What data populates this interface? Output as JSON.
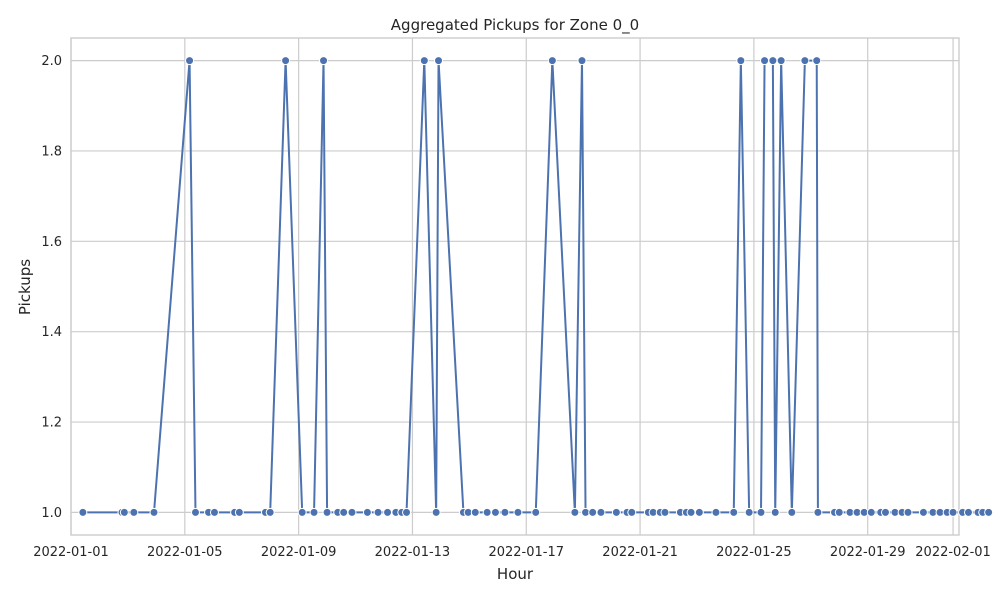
{
  "chart_data": {
    "type": "line",
    "title": "Aggregated Pickups for Zone 0_0",
    "xlabel": "Hour",
    "ylabel": "Pickups",
    "x_tick_labels": [
      "2022-01-01",
      "2022-01-05",
      "2022-01-09",
      "2022-01-13",
      "2022-01-17",
      "2022-01-21",
      "2022-01-25",
      "2022-01-29",
      "2022-02-01"
    ],
    "y_tick_labels": [
      "1.0",
      "1.2",
      "1.4",
      "1.6",
      "1.8",
      "2.0"
    ],
    "xlim": [
      "2022-01-01T00:00",
      "2022-02-01T05:00"
    ],
    "ylim": [
      0.95,
      2.05
    ],
    "grid": true,
    "colors": {
      "series": "#4c72b0",
      "grid": "#cccccc",
      "text": "#262626"
    },
    "series": [
      {
        "points": [
          [
            "2022-01-01T10:00",
            1
          ],
          [
            "2022-01-02T19:00",
            1
          ],
          [
            "2022-01-02T21:00",
            1
          ],
          [
            "2022-01-03T05:00",
            1
          ],
          [
            "2022-01-03T22:00",
            1
          ],
          [
            "2022-01-05T04:00",
            2
          ],
          [
            "2022-01-05T09:00",
            1
          ],
          [
            "2022-01-05T20:00",
            1
          ],
          [
            "2022-01-06T01:00",
            1
          ],
          [
            "2022-01-06T18:00",
            1
          ],
          [
            "2022-01-06T22:00",
            1
          ],
          [
            "2022-01-07T20:00",
            1
          ],
          [
            "2022-01-08T00:00",
            1
          ],
          [
            "2022-01-08T13:00",
            2
          ],
          [
            "2022-01-09T03:00",
            1
          ],
          [
            "2022-01-09T13:00",
            1
          ],
          [
            "2022-01-09T21:00",
            2
          ],
          [
            "2022-01-10T00:00",
            1
          ],
          [
            "2022-01-10T09:00",
            1
          ],
          [
            "2022-01-10T14:00",
            1
          ],
          [
            "2022-01-10T21:00",
            1
          ],
          [
            "2022-01-11T10:00",
            1
          ],
          [
            "2022-01-11T19:00",
            1
          ],
          [
            "2022-01-12T03:00",
            1
          ],
          [
            "2022-01-12T10:00",
            1
          ],
          [
            "2022-01-12T15:00",
            1
          ],
          [
            "2022-01-12T19:00",
            1
          ],
          [
            "2022-01-13T10:00",
            2
          ],
          [
            "2022-01-13T20:00",
            1
          ],
          [
            "2022-01-13T22:00",
            2
          ],
          [
            "2022-01-14T19:00",
            1
          ],
          [
            "2022-01-14T23:00",
            1
          ],
          [
            "2022-01-15T05:00",
            1
          ],
          [
            "2022-01-15T15:00",
            1
          ],
          [
            "2022-01-15T22:00",
            1
          ],
          [
            "2022-01-16T06:00",
            1
          ],
          [
            "2022-01-16T17:00",
            1
          ],
          [
            "2022-01-17T08:00",
            1
          ],
          [
            "2022-01-17T22:00",
            2
          ],
          [
            "2022-01-18T17:00",
            1
          ],
          [
            "2022-01-18T23:00",
            2
          ],
          [
            "2022-01-19T02:00",
            1
          ],
          [
            "2022-01-19T08:00",
            1
          ],
          [
            "2022-01-19T15:00",
            1
          ],
          [
            "2022-01-20T04:00",
            1
          ],
          [
            "2022-01-20T13:00",
            1
          ],
          [
            "2022-01-20T17:00",
            1
          ],
          [
            "2022-01-21T07:00",
            1
          ],
          [
            "2022-01-21T11:00",
            1
          ],
          [
            "2022-01-21T17:00",
            1
          ],
          [
            "2022-01-21T21:00",
            1
          ],
          [
            "2022-01-22T10:00",
            1
          ],
          [
            "2022-01-22T15:00",
            1
          ],
          [
            "2022-01-22T19:00",
            1
          ],
          [
            "2022-01-23T02:00",
            1
          ],
          [
            "2022-01-23T16:00",
            1
          ],
          [
            "2022-01-24T07:00",
            1
          ],
          [
            "2022-01-24T13:00",
            2
          ],
          [
            "2022-01-24T20:00",
            1
          ],
          [
            "2022-01-25T06:00",
            1
          ],
          [
            "2022-01-25T09:00",
            2
          ],
          [
            "2022-01-25T16:00",
            2
          ],
          [
            "2022-01-25T18:00",
            1
          ],
          [
            "2022-01-25T23:00",
            2
          ],
          [
            "2022-01-26T08:00",
            1
          ],
          [
            "2022-01-26T19:00",
            2
          ],
          [
            "2022-01-27T05:00",
            2
          ],
          [
            "2022-01-27T06:00",
            1
          ],
          [
            "2022-01-27T20:00",
            1
          ],
          [
            "2022-01-28T00:00",
            1
          ],
          [
            "2022-01-28T09:00",
            1
          ],
          [
            "2022-01-28T15:00",
            1
          ],
          [
            "2022-01-28T21:00",
            1
          ],
          [
            "2022-01-29T03:00",
            1
          ],
          [
            "2022-01-29T11:00",
            1
          ],
          [
            "2022-01-29T15:00",
            1
          ],
          [
            "2022-01-29T23:00",
            1
          ],
          [
            "2022-01-30T05:00",
            1
          ],
          [
            "2022-01-30T10:00",
            1
          ],
          [
            "2022-01-30T23:00",
            1
          ],
          [
            "2022-01-31T07:00",
            1
          ],
          [
            "2022-01-31T13:00",
            1
          ],
          [
            "2022-01-31T19:00",
            1
          ],
          [
            "2022-02-01T00:00",
            1
          ],
          [
            "2022-02-01T08:00",
            1
          ],
          [
            "2022-02-01T13:00",
            1
          ],
          [
            "2022-02-01T21:00",
            1
          ],
          [
            "2022-02-02T01:00",
            1
          ],
          [
            "2022-02-02T06:00",
            1
          ]
        ]
      }
    ]
  }
}
